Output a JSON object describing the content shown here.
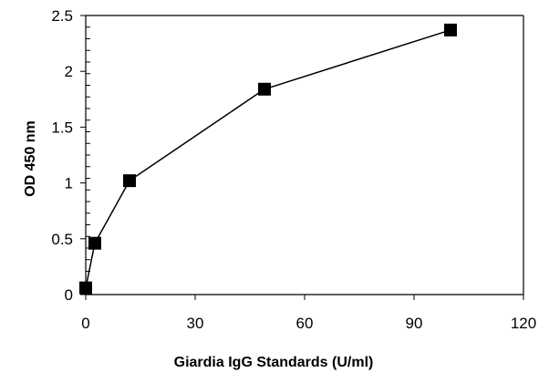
{
  "chart_data": {
    "type": "line",
    "title": "",
    "xlabel": "Giardia IgG Standards (U/ml)",
    "ylabel": "OD 450 nm",
    "xlim": [
      0,
      120
    ],
    "ylim": [
      0,
      2.5
    ],
    "xticks": [
      0,
      30,
      60,
      90,
      120
    ],
    "yticks": [
      0,
      0.5,
      1,
      1.5,
      2,
      2.5
    ],
    "xtick_labels": [
      "0",
      "30",
      "60",
      "90",
      "120"
    ],
    "ytick_labels": [
      "0",
      "0.5",
      "1",
      "1.5",
      "2",
      "2.5"
    ],
    "grid": false,
    "legend": "none",
    "marker": "square",
    "series": [
      {
        "x": [
          0,
          2.5,
          12,
          49,
          100
        ],
        "y": [
          0.06,
          0.46,
          1.02,
          1.84,
          2.37
        ]
      }
    ],
    "colors": {
      "line": "#000000",
      "marker": "#000000",
      "axis": "#000000"
    }
  }
}
